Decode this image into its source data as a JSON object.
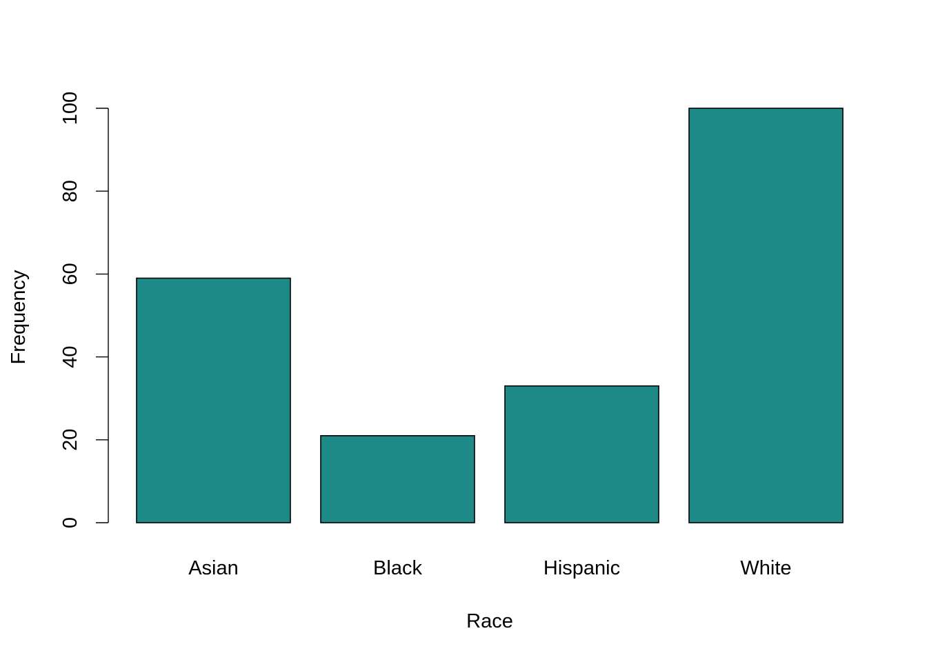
{
  "chart_data": {
    "type": "bar",
    "categories": [
      "Asian",
      "Black",
      "Hispanic",
      "White"
    ],
    "values": [
      59,
      21,
      33,
      100
    ],
    "title": "",
    "xlabel": "Race",
    "ylabel": "Frequency",
    "ylim": [
      0,
      100
    ],
    "yticks": [
      "0",
      "20",
      "40",
      "60",
      "80",
      "100"
    ],
    "bar_color": "#1e8a87",
    "grid": false
  }
}
